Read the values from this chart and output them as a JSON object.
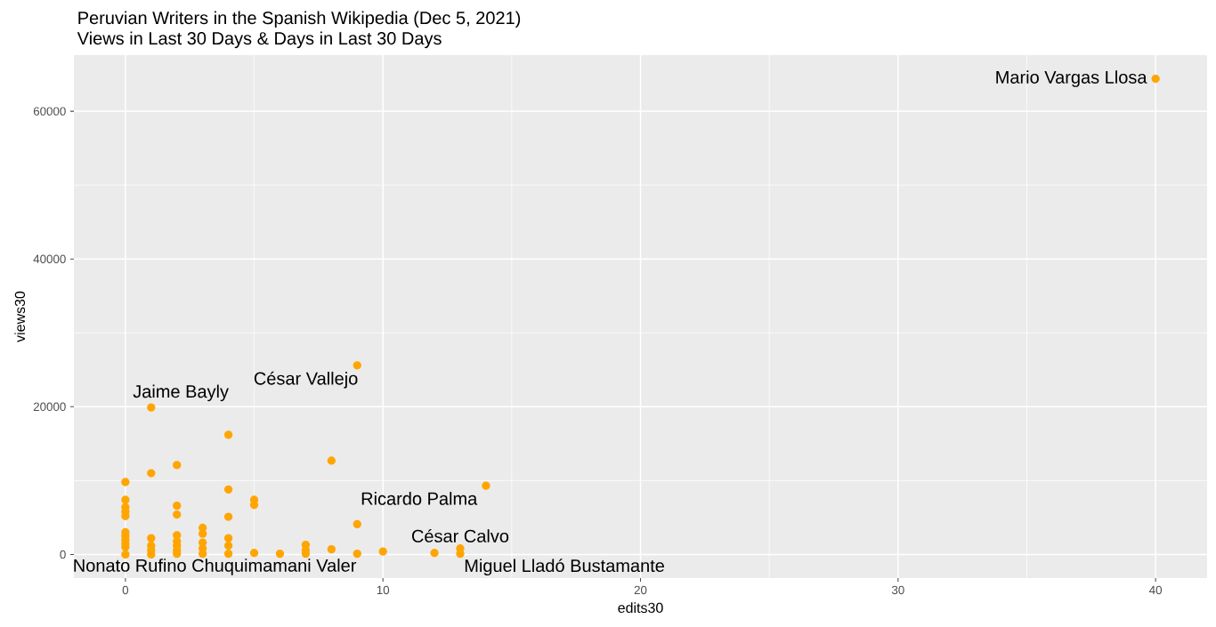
{
  "chart_data": {
    "type": "scatter",
    "title": "Peruvian Writers in the Spanish Wikipedia (Dec 5, 2021)",
    "subtitle": "Views in Last 30 Days & Days in Last 30 Days",
    "xlabel": "edits30",
    "ylabel": "views30",
    "x": [
      0,
      0,
      0,
      0,
      0,
      0,
      0,
      0,
      0,
      0,
      0,
      1,
      1,
      1,
      1,
      1,
      1,
      2,
      2,
      2,
      2,
      2,
      2,
      2,
      2,
      3,
      3,
      3,
      3,
      3,
      4,
      4,
      4,
      4,
      4,
      4,
      5,
      5,
      5,
      6,
      7,
      7,
      7,
      8,
      8,
      9,
      9,
      9,
      10,
      12,
      13,
      13,
      14,
      40
    ],
    "values": [
      9800,
      7400,
      6400,
      5800,
      5200,
      3000,
      2500,
      2000,
      1500,
      1000,
      0,
      19900,
      11000,
      2200,
      1200,
      600,
      0,
      12100,
      6600,
      5400,
      2600,
      1800,
      1200,
      600,
      100,
      3600,
      2800,
      1600,
      800,
      100,
      16200,
      8800,
      5100,
      2200,
      1200,
      100,
      7400,
      6700,
      200,
      100,
      1300,
      600,
      100,
      12700,
      700,
      25600,
      4100,
      100,
      400,
      200,
      800,
      100,
      9300,
      64400
    ],
    "color": "#ffa500",
    "marker": "circle",
    "grid": true,
    "xlim": [
      -2,
      42
    ],
    "xticks": [
      0,
      10,
      20,
      30,
      40
    ],
    "ylim": [
      -3200,
      67600
    ],
    "yticks": [
      0,
      20000,
      40000,
      60000
    ],
    "annotations": [
      {
        "text": "Mario Vargas Llosa",
        "x": 40,
        "y": 64400
      },
      {
        "text": "César Vallejo",
        "x": 9,
        "y": 25600
      },
      {
        "text": "Jaime Bayly",
        "x": 1,
        "y": 19900
      },
      {
        "text": "Ricardo Palma",
        "x": 14,
        "y": 9300
      },
      {
        "text": "César Calvo",
        "x": 13,
        "y": 800
      },
      {
        "text": "Miguel Lladó Bustamante",
        "x": 13,
        "y": 100
      },
      {
        "text": "Nonato Rufino Chuquimamani Valer",
        "x": 6,
        "y": 100
      }
    ]
  }
}
